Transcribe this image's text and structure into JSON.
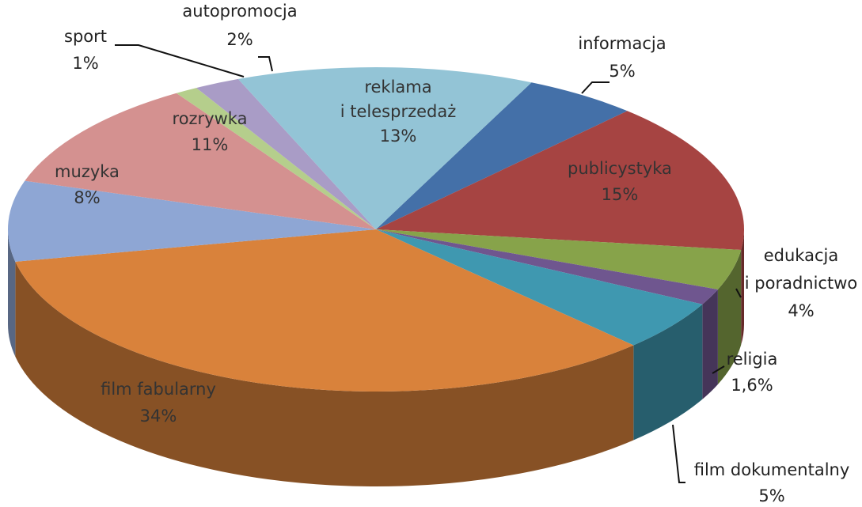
{
  "chart_data": {
    "type": "pie3d",
    "categories": [
      "informacja",
      "publicystyka",
      "edukacja\ni poradnictwo",
      "religia",
      "film dokumentalny",
      "film fabularny",
      "muzyka",
      "rozrywka",
      "sport",
      "autopromocja",
      "reklama\ni telesprzedaż"
    ],
    "values": [
      5,
      15,
      4,
      1.6,
      5,
      34,
      8,
      11,
      1,
      2,
      13
    ],
    "value_labels": [
      "5%",
      "15%",
      "4%",
      "1,6%",
      "5%",
      "34%",
      "8%",
      "11%",
      "1%",
      "2%",
      "13%"
    ],
    "colors": [
      "#4470a8",
      "#a64442",
      "#87a34a",
      "#6f568f",
      "#3f98b0",
      "#d9823b",
      "#8ea6d4",
      "#d49190",
      "#b5ce8c",
      "#a99cc6",
      "#93c4d6"
    ]
  }
}
